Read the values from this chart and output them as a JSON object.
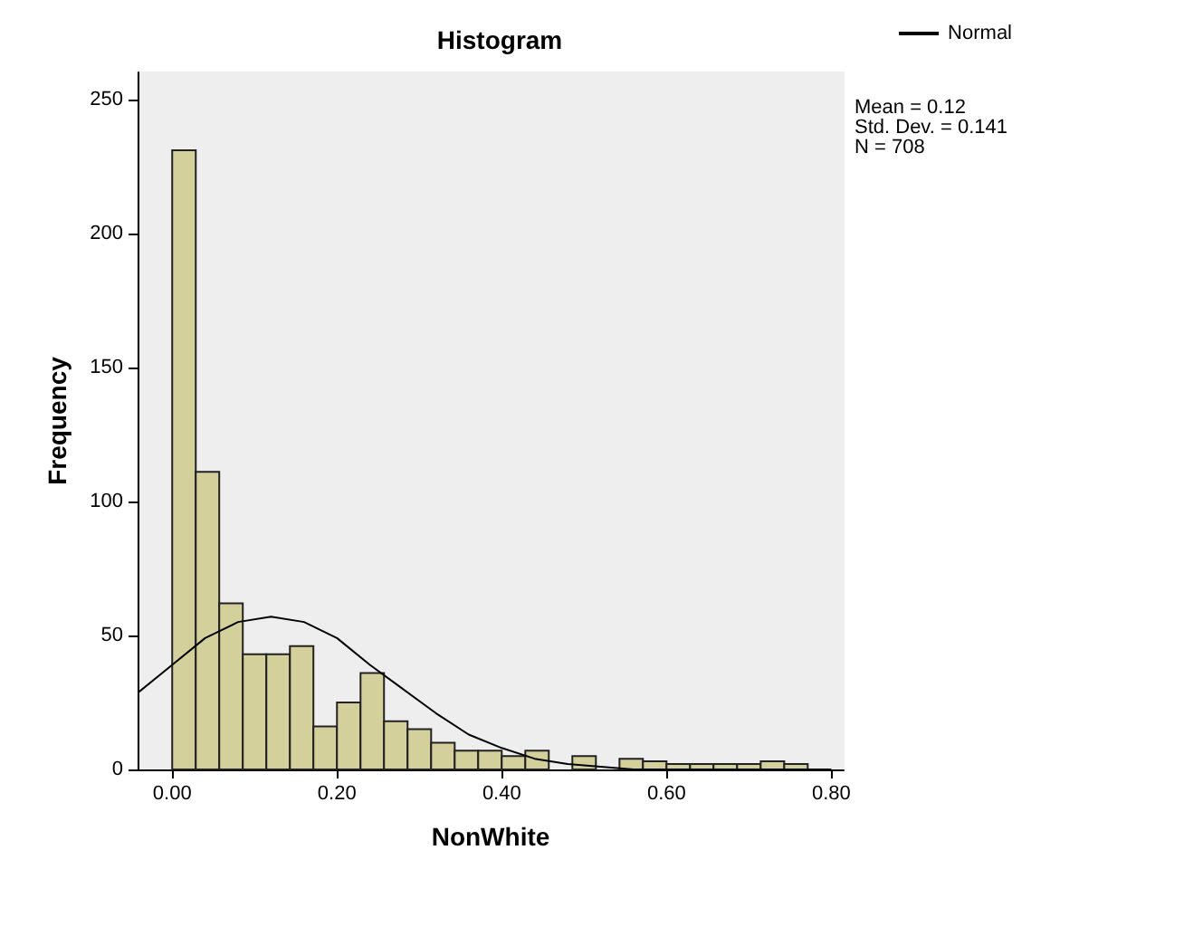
{
  "chart_data": {
    "type": "histogram",
    "title": "Histogram",
    "xlabel": "NonWhite",
    "ylabel": "Frequency",
    "bins": [
      0,
      0.0286,
      0.0571,
      0.0857,
      0.1143,
      0.1429,
      0.1714,
      0.2,
      0.2286,
      0.2571,
      0.2857,
      0.3143,
      0.3429,
      0.3714,
      0.4,
      0.4286,
      0.4571,
      0.4857,
      0.5143,
      0.5429,
      0.5714,
      0.6,
      0.6286,
      0.6571,
      0.6857,
      0.7143,
      0.7429,
      0.7714
    ],
    "values": [
      231,
      111,
      62,
      43,
      43,
      46,
      16,
      25,
      36,
      18,
      15,
      10,
      7,
      7,
      5,
      7,
      0,
      5,
      0,
      4,
      3,
      2,
      2,
      2,
      2,
      3,
      2
    ],
    "color": "#d4d09c",
    "series": [
      {
        "type": "line",
        "name": "Normal",
        "color": "#000000",
        "marker": "none",
        "x": [
          -0.04,
          0,
          0.04,
          0.08,
          0.12,
          0.16,
          0.2,
          0.24,
          0.28,
          0.32,
          0.36,
          0.4,
          0.44,
          0.48,
          0.52,
          0.56,
          0.6,
          0.64,
          0.68,
          0.72,
          0.76,
          0.8
        ],
        "values": [
          29,
          39,
          49,
          55,
          57,
          55,
          49,
          39,
          30,
          21,
          13,
          8,
          4,
          2,
          1,
          0,
          0,
          0,
          0,
          0,
          0,
          0
        ]
      }
    ],
    "xlim": [
      -0.042,
      0.815
    ],
    "xticks": [
      {
        "value": 0,
        "label": "0.00"
      },
      {
        "value": 0.2,
        "label": "0.20"
      },
      {
        "value": 0.4,
        "label": "0.40"
      },
      {
        "value": 0.6,
        "label": "0.60"
      },
      {
        "value": 0.8,
        "label": "0.80"
      }
    ],
    "ylim": [
      0,
      260
    ],
    "yticks": [
      0,
      50,
      100,
      150,
      200,
      250
    ],
    "grid": false,
    "legend": "top right",
    "annotations": [
      "Mean = 0.12",
      "Std. Dev. = 0.141",
      "N = 708"
    ]
  }
}
